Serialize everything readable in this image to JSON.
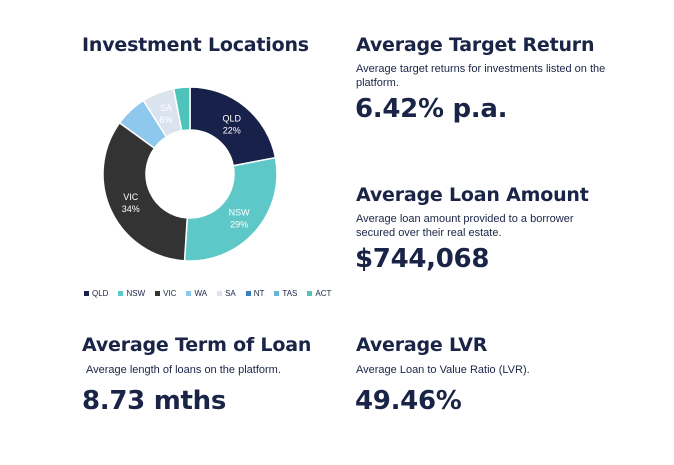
{
  "chart_data": {
    "type": "pie",
    "donut": true,
    "title": "Investment Locations",
    "categories": [
      "QLD",
      "NSW",
      "VIC",
      "WA",
      "SA",
      "NT",
      "TAS",
      "ACT"
    ],
    "values": [
      22,
      29,
      34,
      6,
      6,
      0,
      0,
      3
    ],
    "value_labels": [
      "22%",
      "29%",
      "34%",
      "6%",
      "6%",
      "",
      "",
      "3%"
    ],
    "show_label": [
      true,
      true,
      true,
      false,
      true,
      false,
      false,
      false
    ],
    "colors": [
      "#17214a",
      "#5ec8c8",
      "#333333",
      "#8ec8ec",
      "#dbe3ef",
      "#3a7fbf",
      "#67b3d4",
      "#4ec3b9"
    ],
    "label_colors": [
      "#ffffff",
      "#ffffff",
      "#ffffff",
      "#ffffff",
      "#ffffff",
      "#ffffff",
      "#ffffff",
      "#ffffff"
    ],
    "legend_position": "bottom"
  },
  "stats": {
    "return": {
      "title": "Average Target Return",
      "desc": "Average target returns for investments listed on the platform.",
      "value": "6.42% p.a."
    },
    "loan": {
      "title": "Average Loan Amount",
      "desc": "Average loan amount provided to a borrower secured over their real estate.",
      "value": "$744,068"
    },
    "term": {
      "title": "Average Term of Loan",
      "desc": "Average length of loans on the platform.",
      "value": "8.73 mths"
    },
    "lvr": {
      "title": "Average LVR",
      "desc": "Average Loan to Value Ratio (LVR).",
      "value": "49.46%"
    }
  }
}
